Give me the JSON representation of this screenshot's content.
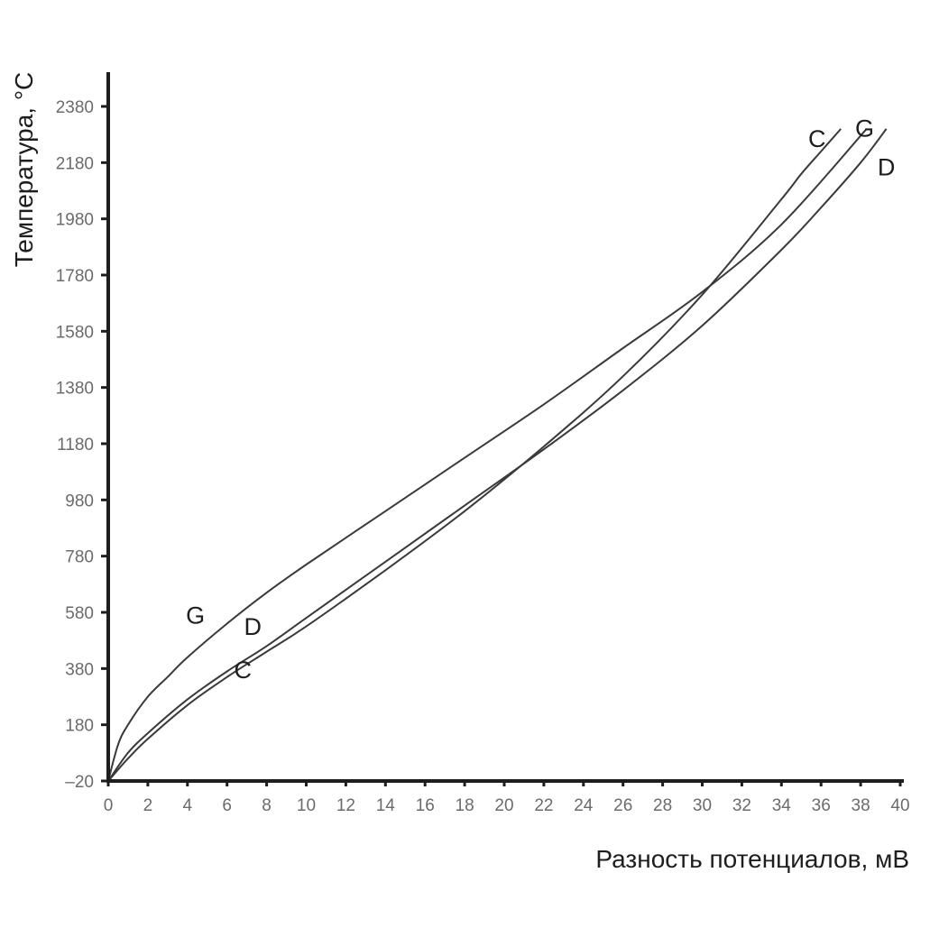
{
  "chart_data": {
    "type": "line",
    "title": "",
    "xlabel": "Разность потенциалов, мВ",
    "ylabel": "Температура, °C",
    "xlim": [
      0,
      40
    ],
    "ylim": [
      -20,
      2380
    ],
    "x_ticks": [
      "0",
      "2",
      "4",
      "6",
      "8",
      "10",
      "12",
      "14",
      "16",
      "18",
      "20",
      "22",
      "24",
      "26",
      "28",
      "30",
      "32",
      "34",
      "36",
      "38",
      "40"
    ],
    "y_ticks": [
      "–20",
      "180",
      "380",
      "580",
      "780",
      "980",
      "1180",
      "1380",
      "1580",
      "1780",
      "1980",
      "2180",
      "2380"
    ],
    "grid": false,
    "series": [
      {
        "name": "G",
        "x": [
          0,
          0.5,
          1,
          2,
          3,
          4,
          6,
          8,
          10,
          14,
          18,
          22,
          26,
          30,
          34,
          38.3
        ],
        "y": [
          -20,
          110,
          180,
          280,
          350,
          420,
          540,
          650,
          750,
          940,
          1130,
          1320,
          1520,
          1720,
          1960,
          2300
        ]
      },
      {
        "name": "D",
        "x": [
          0,
          1,
          2,
          4,
          6,
          8,
          10,
          14,
          18,
          22,
          26,
          30,
          34,
          36,
          38,
          39.3
        ],
        "y": [
          -20,
          80,
          150,
          270,
          370,
          460,
          560,
          760,
          960,
          1160,
          1370,
          1600,
          1870,
          2020,
          2180,
          2300
        ]
      },
      {
        "name": "C",
        "x": [
          0,
          1,
          2,
          4,
          6,
          8,
          10,
          14,
          18,
          22,
          26,
          30,
          34,
          35,
          36,
          37
        ],
        "y": [
          -20,
          60,
          130,
          250,
          350,
          440,
          530,
          730,
          940,
          1170,
          1420,
          1710,
          2050,
          2140,
          2220,
          2300
        ]
      }
    ],
    "annotations": [
      "G",
      "D",
      "C",
      "C",
      "G",
      "D"
    ]
  }
}
